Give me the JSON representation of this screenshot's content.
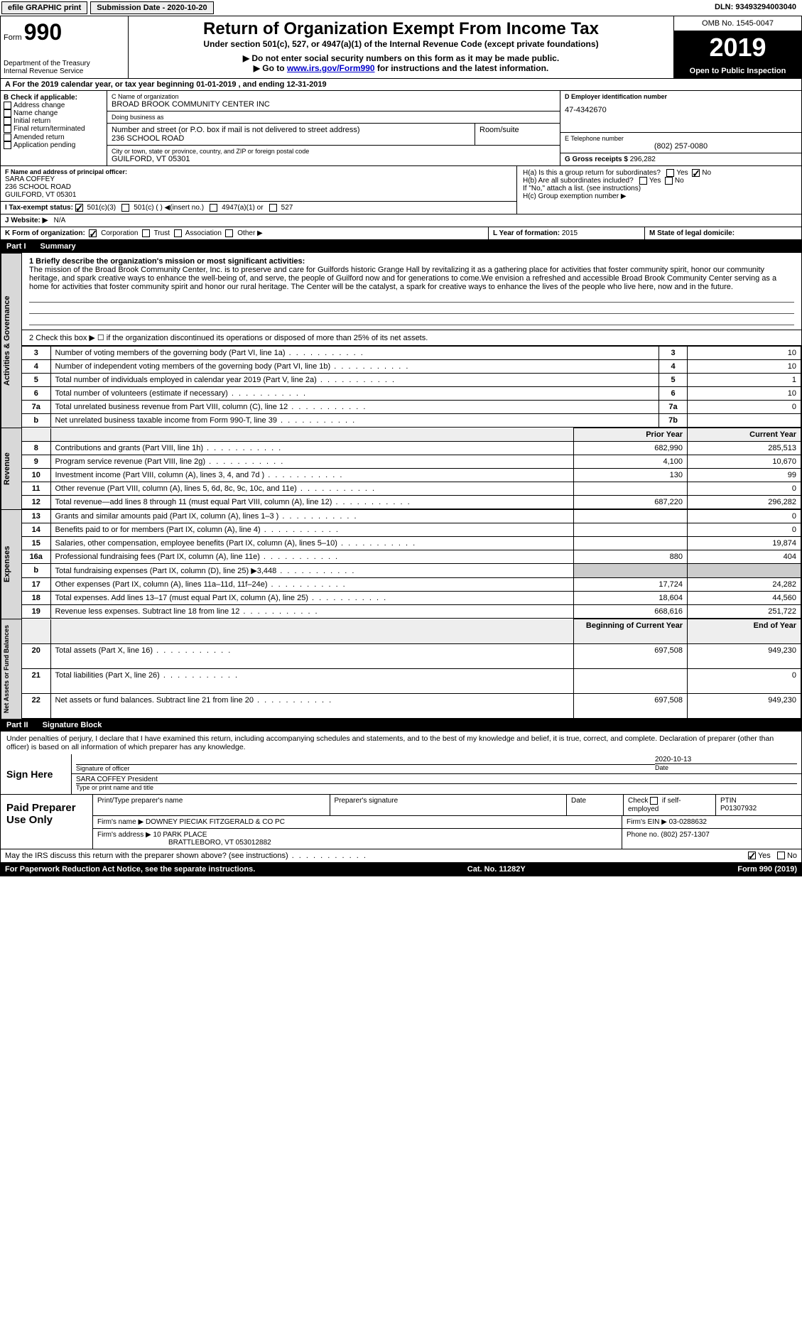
{
  "topbar": {
    "efile": "efile GRAPHIC print",
    "submission": "Submission Date - 2020-10-20",
    "dln": "DLN: 93493294003040"
  },
  "header": {
    "form_label": "Form",
    "form_num": "990",
    "dept": "Department of the Treasury",
    "irs": "Internal Revenue Service",
    "title": "Return of Organization Exempt From Income Tax",
    "subtitle": "Under section 501(c), 527, or 4947(a)(1) of the Internal Revenue Code (except private foundations)",
    "note1": "▶ Do not enter social security numbers on this form as it may be made public.",
    "note2_pre": "▶ Go to ",
    "note2_link": "www.irs.gov/Form990",
    "note2_post": " for instructions and the latest information.",
    "omb": "OMB No. 1545-0047",
    "year": "2019",
    "open": "Open to Public Inspection"
  },
  "section_a": "A For the 2019 calendar year, or tax year beginning 01-01-2019    , and ending 12-31-2019",
  "col_b": {
    "title": "B Check if applicable:",
    "opts": [
      "Address change",
      "Name change",
      "Initial return",
      "Final return/terminated",
      "Amended return",
      "Application pending"
    ]
  },
  "org": {
    "c_label": "C Name of organization",
    "name": "BROAD BROOK COMMUNITY CENTER INC",
    "dba_label": "Doing business as",
    "dba": "",
    "addr_label": "Number and street (or P.O. box if mail is not delivered to street address)",
    "addr": "236 SCHOOL ROAD",
    "room_label": "Room/suite",
    "city_label": "City or town, state or province, country, and ZIP or foreign postal code",
    "city": "GUILFORD, VT  05301"
  },
  "right": {
    "d_label": "D Employer identification number",
    "ein": "47-4342670",
    "e_label": "E Telephone number",
    "phone": "(802) 257-0080",
    "g_label": "G Gross receipts $",
    "gross": "296,282"
  },
  "officer": {
    "f_label": "F Name and address of principal officer:",
    "name": "SARA COFFEY",
    "addr1": "236 SCHOOL ROAD",
    "addr2": "GUILFORD, VT  05301"
  },
  "h": {
    "a_label": "H(a)  Is this a group return for subordinates?",
    "b_label": "H(b)  Are all subordinates included?",
    "b_note": "If \"No,\" attach a list. (see instructions)",
    "c_label": "H(c)  Group exemption number ▶"
  },
  "tax_status": {
    "i_label": "I   Tax-exempt status:",
    "o1": "501(c)(3)",
    "o2": "501(c) (  ) ◀(insert no.)",
    "o3": "4947(a)(1) or",
    "o4": "527"
  },
  "website": {
    "j_label": "J  Website: ▶",
    "value": "N/A"
  },
  "k": {
    "label": "K Form of organization:",
    "o1": "Corporation",
    "o2": "Trust",
    "o3": "Association",
    "o4": "Other ▶"
  },
  "l": {
    "label": "L Year of formation:",
    "value": "2015"
  },
  "m": {
    "label": "M State of legal domicile:",
    "value": ""
  },
  "part1": {
    "label": "Part I",
    "title": "Summary"
  },
  "mission": {
    "q": "1   Briefly describe the organization's mission or most significant activities:",
    "text": "The mission of the Broad Brook Community Center, Inc. is to preserve and care for Guilfords historic Grange Hall by revitalizing it as a gathering place for activities that foster community spirit, honor our community heritage, and spark creative ways to enhance the well-being of, and serve, the people of Guilford now and for generations to come.We envision a refreshed and accessible Broad Brook Community Center serving as a home for activities that foster community spirit and honor our rural heritage. The Center will be the catalyst, a spark for creative ways to enhance the lives of the people who live here, now and in the future."
  },
  "line2": "2   Check this box ▶ ☐ if the organization discontinued its operations or disposed of more than 25% of its net assets.",
  "gov_rows": [
    {
      "n": "3",
      "d": "Number of voting members of the governing body (Part VI, line 1a)",
      "r": "3",
      "v": "10"
    },
    {
      "n": "4",
      "d": "Number of independent voting members of the governing body (Part VI, line 1b)",
      "r": "4",
      "v": "10"
    },
    {
      "n": "5",
      "d": "Total number of individuals employed in calendar year 2019 (Part V, line 2a)",
      "r": "5",
      "v": "1"
    },
    {
      "n": "6",
      "d": "Total number of volunteers (estimate if necessary)",
      "r": "6",
      "v": "10"
    },
    {
      "n": "7a",
      "d": "Total unrelated business revenue from Part VIII, column (C), line 12",
      "r": "7a",
      "v": "0"
    },
    {
      "n": "b",
      "d": "Net unrelated business taxable income from Form 990-T, line 39",
      "r": "7b",
      "v": ""
    }
  ],
  "col_headers": {
    "prior": "Prior Year",
    "current": "Current Year"
  },
  "rev_rows": [
    {
      "n": "8",
      "d": "Contributions and grants (Part VIII, line 1h)",
      "p": "682,990",
      "c": "285,513"
    },
    {
      "n": "9",
      "d": "Program service revenue (Part VIII, line 2g)",
      "p": "4,100",
      "c": "10,670"
    },
    {
      "n": "10",
      "d": "Investment income (Part VIII, column (A), lines 3, 4, and 7d )",
      "p": "130",
      "c": "99"
    },
    {
      "n": "11",
      "d": "Other revenue (Part VIII, column (A), lines 5, 6d, 8c, 9c, 10c, and 11e)",
      "p": "",
      "c": "0"
    },
    {
      "n": "12",
      "d": "Total revenue—add lines 8 through 11 (must equal Part VIII, column (A), line 12)",
      "p": "687,220",
      "c": "296,282"
    }
  ],
  "exp_rows": [
    {
      "n": "13",
      "d": "Grants and similar amounts paid (Part IX, column (A), lines 1–3 )",
      "p": "",
      "c": "0"
    },
    {
      "n": "14",
      "d": "Benefits paid to or for members (Part IX, column (A), line 4)",
      "p": "",
      "c": "0"
    },
    {
      "n": "15",
      "d": "Salaries, other compensation, employee benefits (Part IX, column (A), lines 5–10)",
      "p": "",
      "c": "19,874"
    },
    {
      "n": "16a",
      "d": "Professional fundraising fees (Part IX, column (A), line 11e)",
      "p": "880",
      "c": "404"
    },
    {
      "n": "b",
      "d": "Total fundraising expenses (Part IX, column (D), line 25) ▶3,448",
      "p": "shaded",
      "c": "shaded"
    },
    {
      "n": "17",
      "d": "Other expenses (Part IX, column (A), lines 11a–11d, 11f–24e)",
      "p": "17,724",
      "c": "24,282"
    },
    {
      "n": "18",
      "d": "Total expenses. Add lines 13–17 (must equal Part IX, column (A), line 25)",
      "p": "18,604",
      "c": "44,560"
    },
    {
      "n": "19",
      "d": "Revenue less expenses. Subtract line 18 from line 12",
      "p": "668,616",
      "c": "251,722"
    }
  ],
  "net_headers": {
    "begin": "Beginning of Current Year",
    "end": "End of Year"
  },
  "net_rows": [
    {
      "n": "20",
      "d": "Total assets (Part X, line 16)",
      "p": "697,508",
      "c": "949,230"
    },
    {
      "n": "21",
      "d": "Total liabilities (Part X, line 26)",
      "p": "",
      "c": "0"
    },
    {
      "n": "22",
      "d": "Net assets or fund balances. Subtract line 21 from line 20",
      "p": "697,508",
      "c": "949,230"
    }
  ],
  "vert": {
    "gov": "Activities & Governance",
    "rev": "Revenue",
    "exp": "Expenses",
    "net": "Net Assets or Fund Balances"
  },
  "part2": {
    "label": "Part II",
    "title": "Signature Block"
  },
  "perjury": "Under penalties of perjury, I declare that I have examined this return, including accompanying schedules and statements, and to the best of my knowledge and belief, it is true, correct, and complete. Declaration of preparer (other than officer) is based on all information of which preparer has any knowledge.",
  "sign": {
    "here": "Sign Here",
    "sig_label": "Signature of officer",
    "date": "2020-10-13",
    "date_label": "Date",
    "name": "SARA COFFEY President",
    "name_label": "Type or print name and title"
  },
  "preparer": {
    "label": "Paid Preparer Use Only",
    "h1": "Print/Type preparer's name",
    "h2": "Preparer's signature",
    "h3": "Date",
    "h4_pre": "Check",
    "h4_post": "if self-employed",
    "h5": "PTIN",
    "ptin": "P01307932",
    "firm_label": "Firm's name    ▶",
    "firm": "DOWNEY PIECIAK FITZGERALD & CO PC",
    "ein_label": "Firm's EIN ▶",
    "ein": "03-0288632",
    "addr_label": "Firm's address ▶",
    "addr1": "10 PARK PLACE",
    "addr2": "BRATTLEBORO, VT  053012882",
    "phone_label": "Phone no.",
    "phone": "(802) 257-1307"
  },
  "discuss": "May the IRS discuss this return with the preparer shown above? (see instructions)",
  "footer": {
    "left": "For Paperwork Reduction Act Notice, see the separate instructions.",
    "mid": "Cat. No. 11282Y",
    "right": "Form 990 (2019)"
  },
  "yes": "Yes",
  "no": "No"
}
